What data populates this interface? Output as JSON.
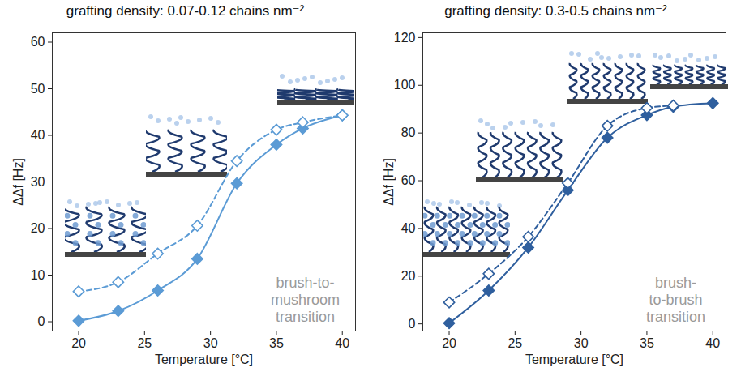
{
  "chart_data": [
    {
      "type": "line",
      "title": "grafting density: 0.07-0.12 chains nm⁻²",
      "x_label": "Temperature [°C]",
      "y_label": "ΔΔf [Hz]",
      "xlim": [
        18,
        41
      ],
      "xticks": [
        20,
        25,
        30,
        35,
        40
      ],
      "ylim": [
        -2,
        62
      ],
      "yticks": [
        0,
        10,
        20,
        30,
        40,
        50,
        60
      ],
      "annotation": "brush-to-\nmushroom\ntransition",
      "series": [
        {
          "color": "#5b9bd5",
          "marker": "filled diamond",
          "line_style": "solid",
          "x": [
            20,
            23,
            26,
            29,
            32,
            35,
            37,
            40
          ],
          "values": [
            0.2,
            2.3,
            6.7,
            13.5,
            29.7,
            38,
            41.5,
            44.3
          ]
        },
        {
          "color": "#5b9bd5",
          "marker": "open diamond",
          "line_style": "dashed",
          "x": [
            20,
            23,
            26,
            29,
            32,
            35,
            37,
            40
          ],
          "values": [
            6.5,
            8.5,
            14.6,
            20.6,
            34.5,
            41.2,
            42.8,
            44.3
          ]
        }
      ]
    },
    {
      "type": "line",
      "title": "grafting density: 0.3-0.5 chains nm⁻²",
      "x_label": "Temperature [°C]",
      "y_label": "ΔΔf [Hz]",
      "xlim": [
        18,
        41
      ],
      "xticks": [
        20,
        25,
        30,
        35,
        40
      ],
      "ylim": [
        -3,
        122
      ],
      "yticks": [
        0,
        20,
        40,
        60,
        80,
        100,
        120
      ],
      "annotation": "brush-\nto-brush\ntransition",
      "series": [
        {
          "color": "#2f5f9e",
          "marker": "filled diamond",
          "line_style": "solid",
          "x": [
            20,
            23,
            26,
            29,
            32,
            35,
            37,
            40
          ],
          "values": [
            0.3,
            14,
            32,
            56,
            78,
            87.5,
            91,
            92.5
          ]
        },
        {
          "color": "#2f5f9e",
          "marker": "open diamond",
          "line_style": "dashed",
          "x": [
            20,
            23,
            26,
            29,
            32,
            35,
            37
          ],
          "values": [
            9,
            21,
            36.5,
            59,
            83,
            90.5,
            91.5
          ]
        }
      ]
    }
  ]
}
